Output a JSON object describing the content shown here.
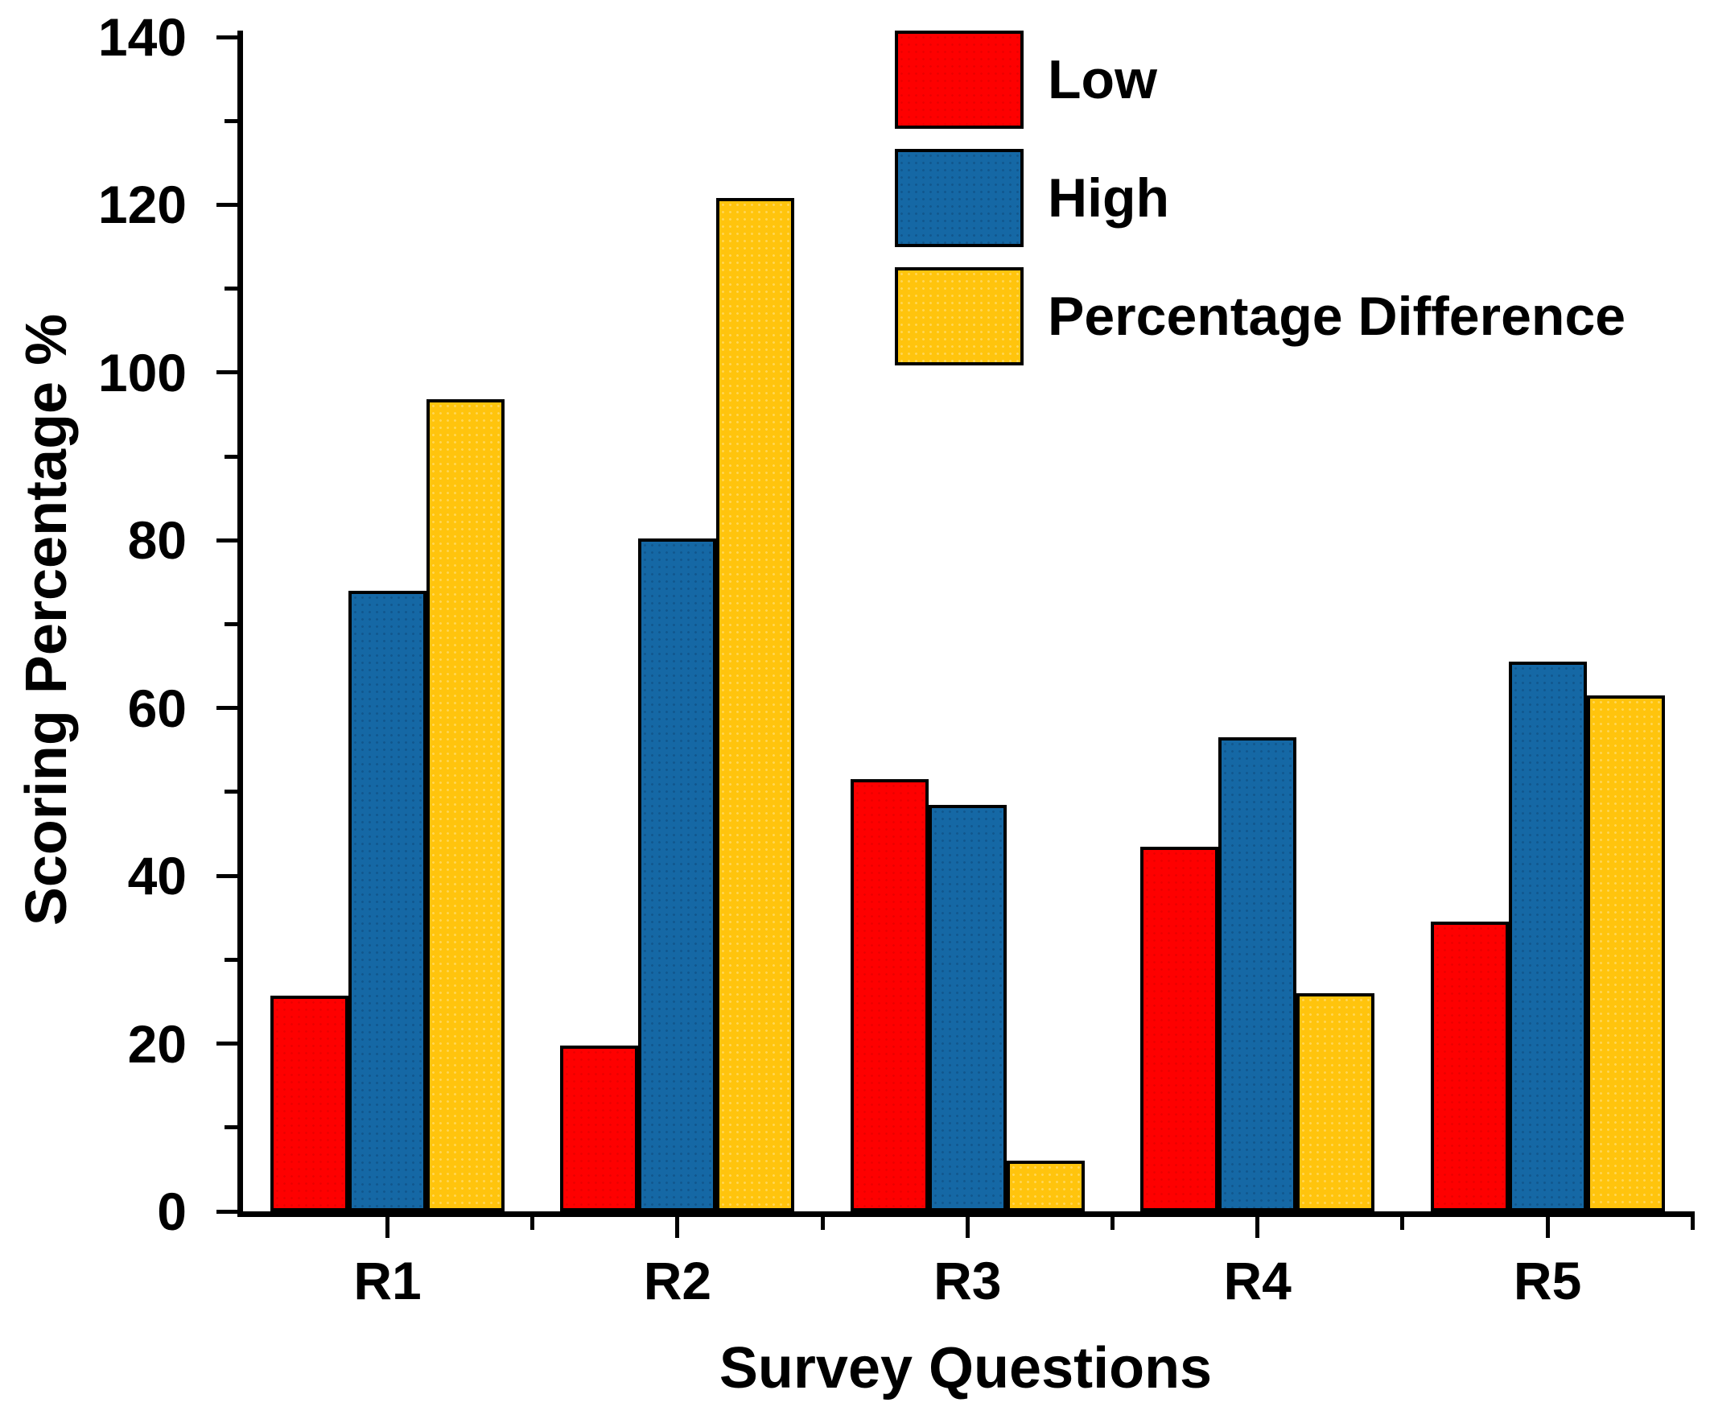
{
  "page": {
    "background": "#FFFFFF",
    "axis_color": "#000000",
    "bar_border_color": "#000000"
  },
  "chart_data": {
    "type": "bar",
    "title": "",
    "xlabel": "Survey Questions",
    "ylabel": "Scoring Percentage %",
    "categories": [
      "R1",
      "R2",
      "R3",
      "R4",
      "R5"
    ],
    "series": [
      {
        "name": "Low",
        "color": "#FE0000",
        "values": [
          25.7,
          19.8,
          51.5,
          43.5,
          34.5
        ]
      },
      {
        "name": "High",
        "color": "#1568A5",
        "values": [
          74.0,
          80.2,
          48.5,
          56.5,
          65.5
        ]
      },
      {
        "name": "Percentage Difference",
        "color": "#FFC40D",
        "values": [
          96.8,
          120.8,
          6.0,
          26.0,
          61.5
        ]
      }
    ],
    "ylim": [
      0,
      140
    ],
    "yticks_major": [
      0,
      20,
      40,
      60,
      80,
      100,
      120,
      140
    ],
    "ytick_labels": [
      "0",
      "20",
      "40",
      "60",
      "80",
      "100",
      "120",
      "140"
    ],
    "yticks_minor": [
      10,
      30,
      50,
      70,
      90,
      110,
      130
    ],
    "grid": false,
    "legend": {
      "position": "top-center-inside",
      "items": [
        "Low",
        "High",
        "Percentage Difference"
      ]
    }
  }
}
